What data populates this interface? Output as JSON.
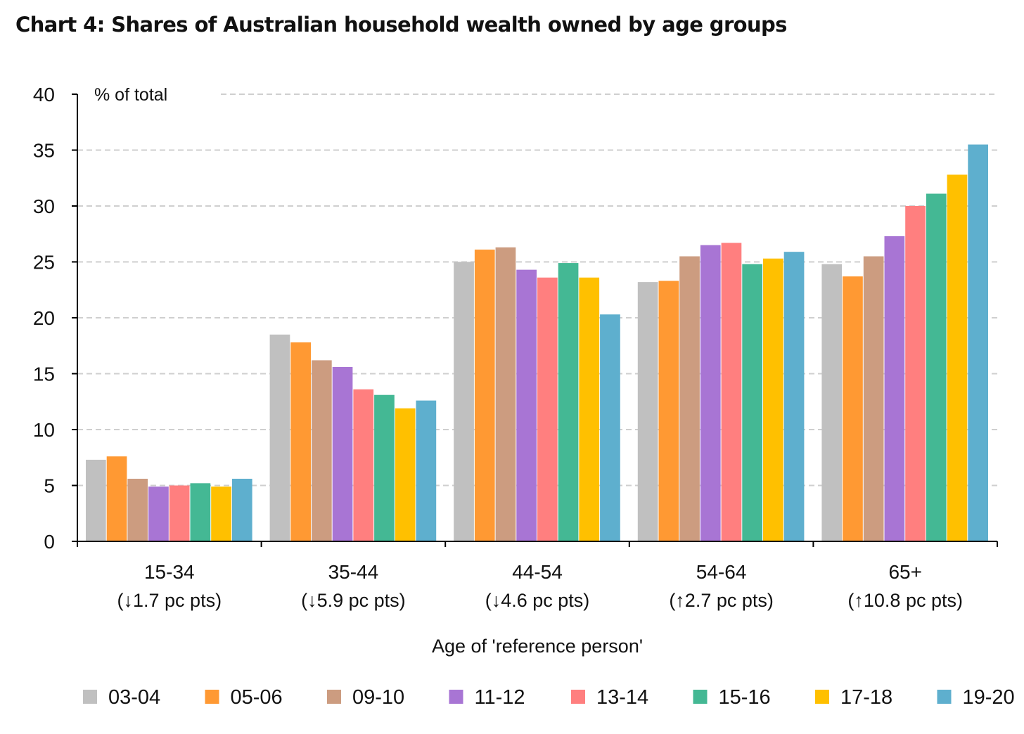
{
  "chart_data": {
    "type": "bar",
    "title": "Chart 4: Shares of Australian household wealth owned by age groups",
    "ylabel": "% of total",
    "xlabel": "Age of 'reference person'",
    "ylim": [
      0,
      40
    ],
    "yticks": [
      0,
      5,
      10,
      15,
      20,
      25,
      30,
      35,
      40
    ],
    "grid": true,
    "legend": "bottom",
    "categories": [
      "15-34",
      "35-44",
      "44-54",
      "54-64",
      "65+"
    ],
    "category_notes": [
      "(↓1.7 pc pts)",
      "(↓5.9 pc pts)",
      "(↓4.6 pc pts)",
      "(↑2.7 pc pts)",
      "(↑10.8 pc pts)"
    ],
    "series": [
      {
        "name": "03-04",
        "color": "#C0C0C0",
        "values": [
          7.3,
          18.5,
          25.0,
          23.2,
          24.8
        ]
      },
      {
        "name": "05-06",
        "color": "#FF9933",
        "values": [
          7.6,
          17.8,
          26.1,
          23.3,
          23.7
        ]
      },
      {
        "name": "09-10",
        "color": "#CC9C80",
        "values": [
          5.6,
          16.2,
          26.3,
          25.5,
          25.5
        ]
      },
      {
        "name": "11-12",
        "color": "#A875D4",
        "values": [
          4.9,
          15.6,
          24.3,
          26.5,
          27.3
        ]
      },
      {
        "name": "13-14",
        "color": "#FF7F7F",
        "values": [
          5.0,
          13.6,
          23.6,
          26.7,
          30.0
        ]
      },
      {
        "name": "15-16",
        "color": "#44B894",
        "values": [
          5.2,
          13.1,
          24.9,
          24.8,
          31.1
        ]
      },
      {
        "name": "17-18",
        "color": "#FFC000",
        "values": [
          4.9,
          11.9,
          23.6,
          25.3,
          32.8
        ]
      },
      {
        "name": "19-20",
        "color": "#5EAFCE",
        "values": [
          5.6,
          12.6,
          20.3,
          25.9,
          35.5
        ]
      }
    ]
  }
}
